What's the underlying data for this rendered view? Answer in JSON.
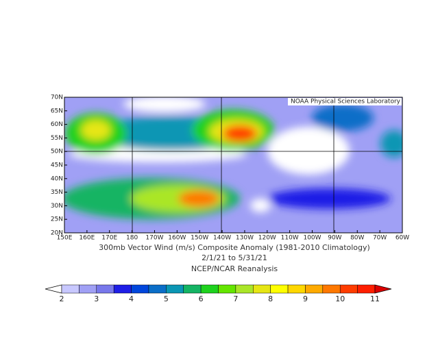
{
  "map": {
    "credit": "NOAA Physical Sciences Laboratory",
    "title": "300mb Vector Wind (m/s) Composite Anomaly (1981-2010 Climatology)",
    "subtitle": "2/1/21  to 5/31/21",
    "source": "NCEP/NCAR Reanalysis",
    "lon_labels": [
      "150E",
      "160E",
      "170E",
      "180",
      "170W",
      "160W",
      "150W",
      "140W",
      "130W",
      "120W",
      "110W",
      "100W",
      "90W",
      "80W",
      "70W",
      "60W"
    ],
    "lat_labels": [
      "70N",
      "65N",
      "60N",
      "55N",
      "50N",
      "45N",
      "40N",
      "35N",
      "30N",
      "25N",
      "20N"
    ],
    "colorbar": {
      "labels": [
        2,
        3,
        4,
        5,
        6,
        7,
        8,
        9,
        10,
        11
      ],
      "colors": [
        "#ffffff",
        "#c8c8ff",
        "#a0a0f5",
        "#7878eb",
        "#1e1ee6",
        "#0046dc",
        "#0a6ec8",
        "#0a96b4",
        "#14b464",
        "#1ed21e",
        "#64e600",
        "#aae628",
        "#e6e614",
        "#ffff00",
        "#ffd700",
        "#ffaa00",
        "#ff7800",
        "#ff3c00",
        "#ff1e00",
        "#dc0000"
      ]
    }
  }
}
